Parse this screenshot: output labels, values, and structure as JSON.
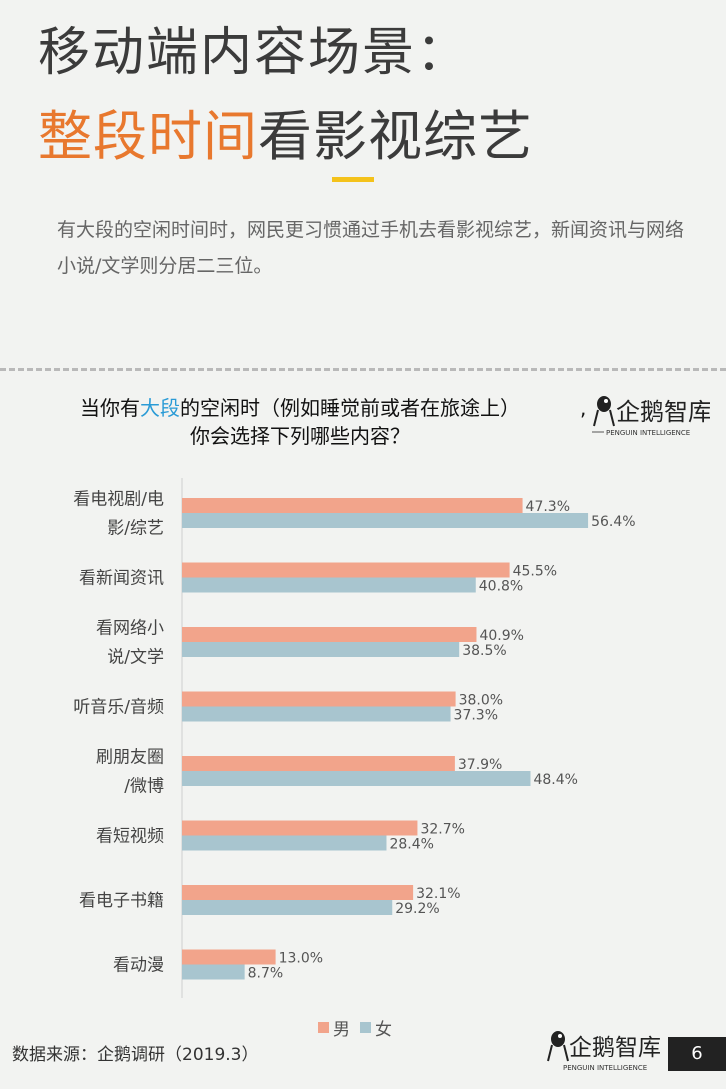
{
  "header": {
    "title_line1": "移动端内容场景：",
    "title_line2_highlight": "整段时间",
    "title_line2_rest": "看影视综艺",
    "description": "有大段的空闲时间时，网民更习惯通过手机去看影视综艺，新闻资讯与网络小说/文学则分居二三位。"
  },
  "question": {
    "part1": "当你有",
    "highlight": "大段",
    "part2": "的空闲时（例如睡觉前或者在旅途上）",
    "line2": "你会选择下列哪些内容？",
    "comma": ","
  },
  "logo": {
    "name": "企鹅智库",
    "subtitle": "PENGUIN INTELLIGENCE"
  },
  "colors": {
    "male": "#f2a48b",
    "female": "#a8c5cf",
    "title_highlight": "#e8782e",
    "question_highlight": "#2a9bd6"
  },
  "chart_data": {
    "type": "bar",
    "orientation": "horizontal",
    "categories": [
      [
        "看电视剧/电",
        "影/综艺"
      ],
      [
        "看新闻资讯"
      ],
      [
        "看网络小",
        "说/文学"
      ],
      [
        "听音乐/音频"
      ],
      [
        "刷朋友圈",
        "/微博"
      ],
      [
        "看短视频"
      ],
      [
        "看电子书籍"
      ],
      [
        "看动漫"
      ]
    ],
    "series": [
      {
        "name": "男",
        "values": [
          47.3,
          45.5,
          40.9,
          38.0,
          37.9,
          32.7,
          32.1,
          13.0
        ]
      },
      {
        "name": "女",
        "values": [
          56.4,
          40.8,
          38.5,
          37.3,
          48.4,
          28.4,
          29.2,
          8.7
        ]
      }
    ],
    "value_labels": {
      "男": [
        "47.3%",
        "45.5%",
        "40.9%",
        "38.0%",
        "37.9%",
        "32.7%",
        "32.1%",
        "13.0%"
      ],
      "女": [
        "56.4%",
        "40.8%",
        "38.5%",
        "37.3%",
        "48.4%",
        "28.4%",
        "29.2%",
        "8.7%"
      ]
    },
    "xlim": [
      0,
      60
    ],
    "grid": false,
    "legend": "bottom"
  },
  "footer": {
    "source": "数据来源：企鹅调研（2019.3）",
    "page": "6"
  }
}
